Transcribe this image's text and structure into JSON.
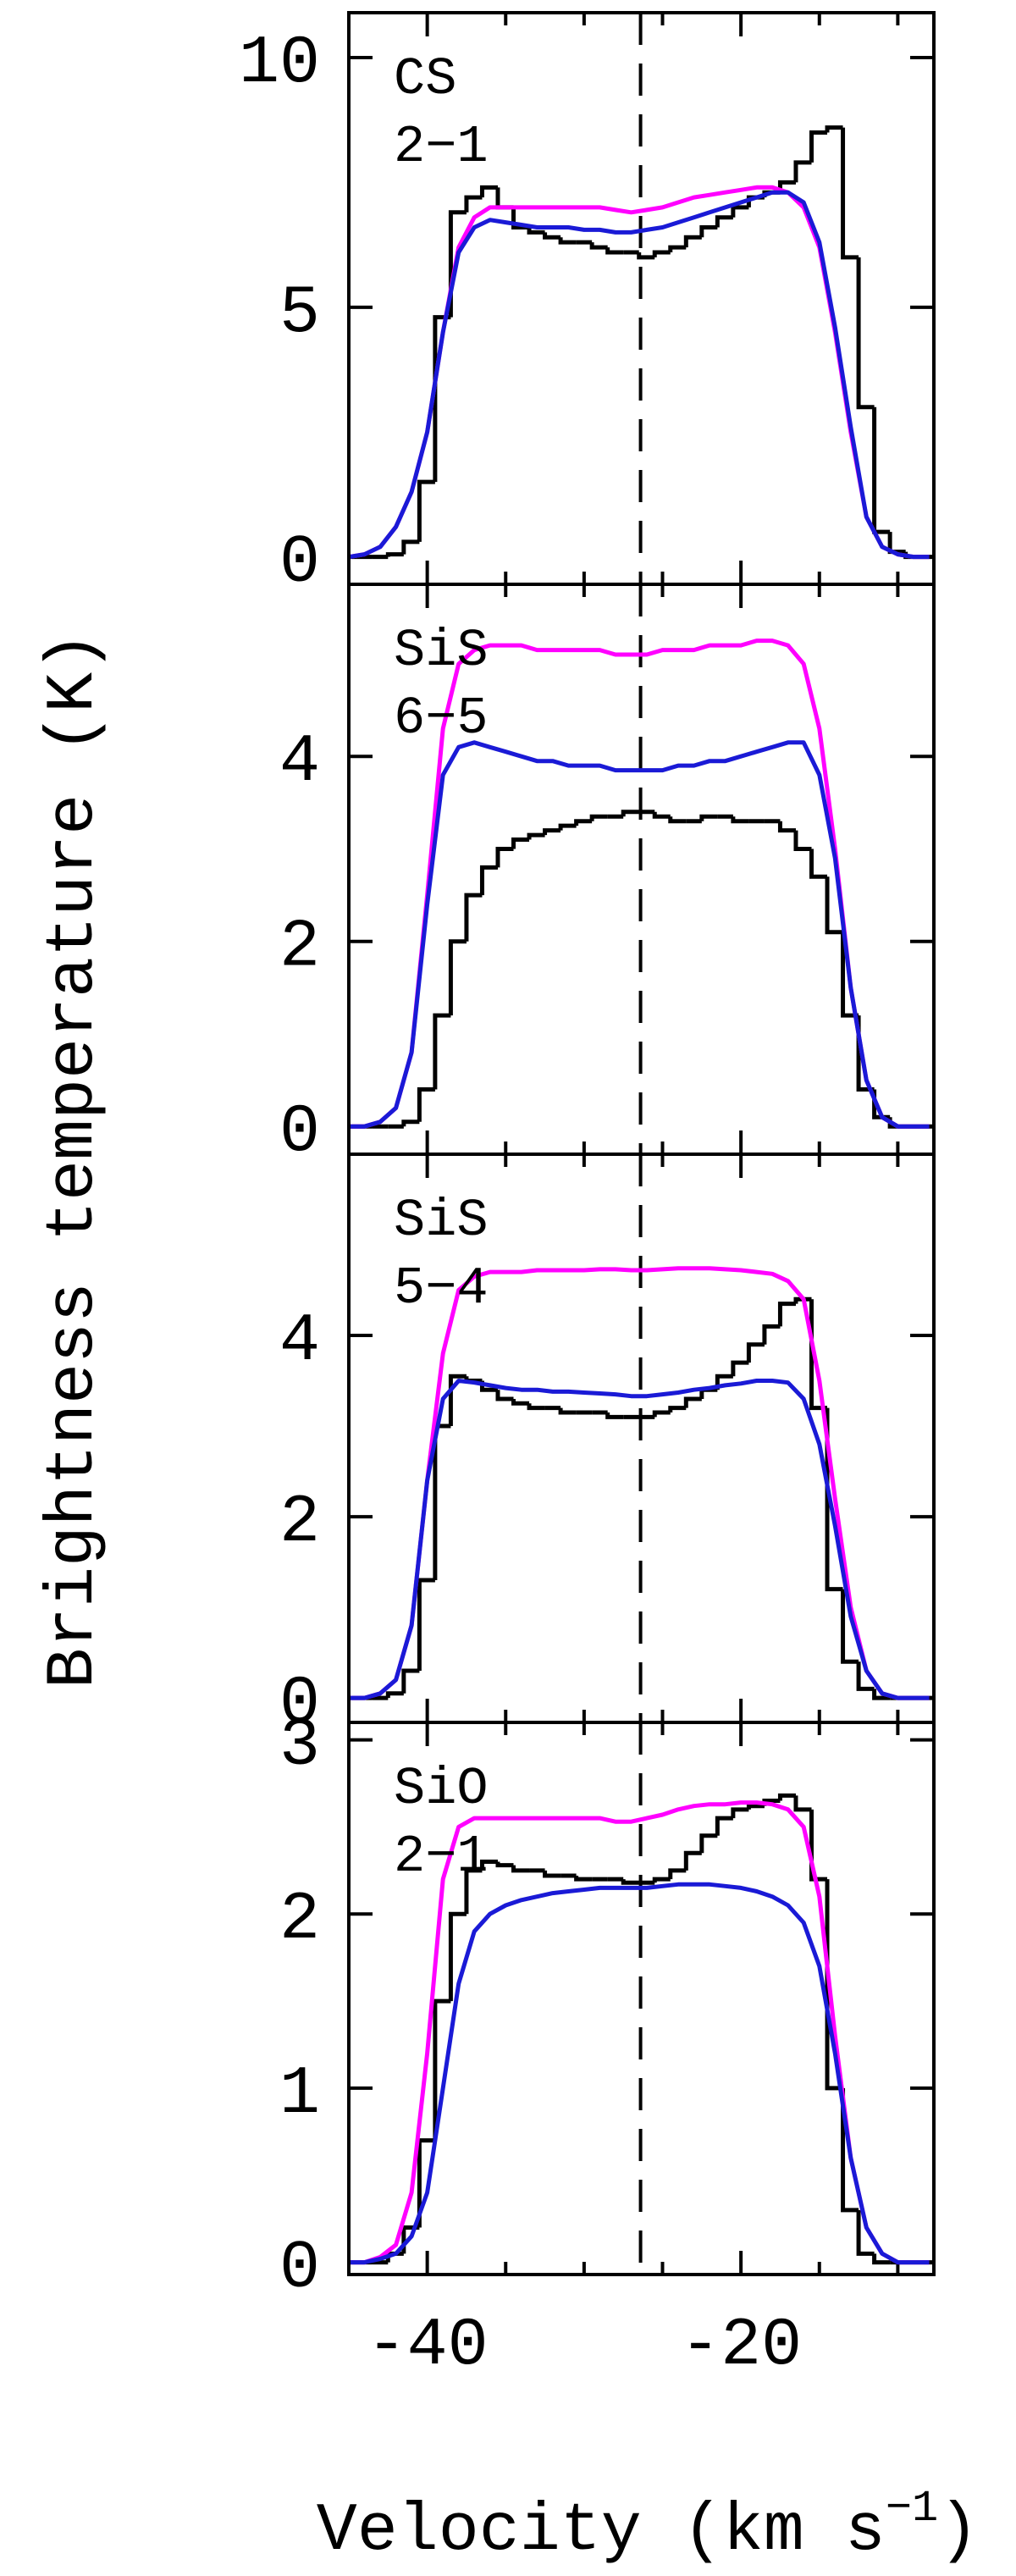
{
  "chart_data": [
    {
      "type": "line",
      "label": [
        "CS",
        "2−1"
      ],
      "x": [
        -45,
        -44,
        -43,
        -42,
        -41,
        -40,
        -39,
        -38,
        -37,
        -36,
        -35,
        -34,
        -33,
        -32,
        -31,
        -30,
        -29,
        -28,
        -27,
        -26,
        -25,
        -24,
        -23,
        -22,
        -21,
        -20,
        -19,
        -18,
        -17,
        -16,
        -15,
        -14,
        -13,
        -12,
        -11,
        -10,
        -9,
        -8
      ],
      "xlim": [
        -45,
        -7.7
      ],
      "xticks": [
        -40,
        -20
      ],
      "xminor": [
        -35,
        -30,
        -25,
        -15,
        -10
      ],
      "ylim": [
        -0.55,
        10.9
      ],
      "yticks": [
        0,
        5,
        10
      ],
      "vline": -26.4,
      "series": [
        {
          "color": "#000000",
          "style": "step",
          "values": [
            0,
            0,
            0,
            0.05,
            0.3,
            1.5,
            4.8,
            6.9,
            7.2,
            7.4,
            7.0,
            6.6,
            6.5,
            6.4,
            6.3,
            6.3,
            6.2,
            6.1,
            6.1,
            6.0,
            6.1,
            6.2,
            6.4,
            6.6,
            6.8,
            7.0,
            7.2,
            7.3,
            7.5,
            7.9,
            8.5,
            8.6,
            6.0,
            3.0,
            0.5,
            0.1,
            0,
            0
          ]
        },
        {
          "color": "#ff00ff",
          "style": "line",
          "values": [
            0,
            0.05,
            0.2,
            0.6,
            1.3,
            2.5,
            4.5,
            6.2,
            6.8,
            7.0,
            7.0,
            7.0,
            7.0,
            7.0,
            7.0,
            7.0,
            7.0,
            6.95,
            6.9,
            6.95,
            7.0,
            7.1,
            7.2,
            7.25,
            7.3,
            7.35,
            7.4,
            7.4,
            7.3,
            7.0,
            6.2,
            4.5,
            2.5,
            0.8,
            0.2,
            0.05,
            0,
            0
          ]
        },
        {
          "color": "#1a1ad6",
          "style": "line",
          "values": [
            0,
            0.05,
            0.2,
            0.6,
            1.3,
            2.5,
            4.5,
            6.1,
            6.6,
            6.75,
            6.7,
            6.65,
            6.6,
            6.6,
            6.6,
            6.55,
            6.55,
            6.5,
            6.5,
            6.55,
            6.6,
            6.7,
            6.8,
            6.9,
            7.0,
            7.1,
            7.2,
            7.3,
            7.3,
            7.1,
            6.3,
            4.6,
            2.6,
            0.8,
            0.2,
            0.05,
            0,
            0
          ]
        }
      ]
    },
    {
      "type": "line",
      "label": [
        "SiS",
        "6−5"
      ],
      "x": [
        -45,
        -44,
        -43,
        -42,
        -41,
        -40,
        -39,
        -38,
        -37,
        -36,
        -35,
        -34,
        -33,
        -32,
        -31,
        -30,
        -29,
        -28,
        -27,
        -26,
        -25,
        -24,
        -23,
        -22,
        -21,
        -20,
        -19,
        -18,
        -17,
        -16,
        -15,
        -14,
        -13,
        -12,
        -11,
        -10,
        -9,
        -8
      ],
      "xlim": [
        -45,
        -7.7
      ],
      "xticks": [
        -40,
        -20
      ],
      "xminor": [
        -35,
        -30,
        -25,
        -15,
        -10
      ],
      "ylim": [
        -0.3,
        5.86
      ],
      "yticks": [
        0,
        2,
        4
      ],
      "vline": -26.4,
      "series": [
        {
          "color": "#000000",
          "style": "step",
          "values": [
            0,
            0,
            0,
            0,
            0.05,
            0.4,
            1.2,
            2.0,
            2.5,
            2.8,
            3.0,
            3.1,
            3.15,
            3.2,
            3.25,
            3.3,
            3.35,
            3.35,
            3.4,
            3.4,
            3.35,
            3.3,
            3.3,
            3.35,
            3.35,
            3.3,
            3.3,
            3.3,
            3.2,
            3.0,
            2.7,
            2.1,
            1.2,
            0.4,
            0.1,
            0,
            0,
            0
          ]
        },
        {
          "color": "#ff00ff",
          "style": "line",
          "values": [
            0,
            0,
            0.05,
            0.2,
            0.8,
            2.5,
            4.3,
            5.0,
            5.15,
            5.2,
            5.2,
            5.2,
            5.15,
            5.15,
            5.15,
            5.15,
            5.15,
            5.1,
            5.1,
            5.1,
            5.15,
            5.15,
            5.15,
            5.2,
            5.2,
            5.2,
            5.25,
            5.25,
            5.2,
            5.0,
            4.3,
            3.0,
            1.5,
            0.5,
            0.1,
            0,
            0,
            0
          ]
        },
        {
          "color": "#1a1ad6",
          "style": "line",
          "values": [
            0,
            0,
            0.05,
            0.2,
            0.8,
            2.4,
            3.8,
            4.1,
            4.15,
            4.1,
            4.05,
            4.0,
            3.95,
            3.95,
            3.9,
            3.9,
            3.9,
            3.85,
            3.85,
            3.85,
            3.85,
            3.9,
            3.9,
            3.95,
            3.95,
            4.0,
            4.05,
            4.1,
            4.15,
            4.15,
            3.8,
            2.9,
            1.5,
            0.5,
            0.1,
            0,
            0,
            0
          ]
        }
      ]
    },
    {
      "type": "line",
      "label": [
        "SiS",
        "5−4"
      ],
      "x": [
        -45,
        -44,
        -43,
        -42,
        -41,
        -40,
        -39,
        -38,
        -37,
        -36,
        -35,
        -34,
        -33,
        -32,
        -31,
        -30,
        -29,
        -28,
        -27,
        -26,
        -25,
        -24,
        -23,
        -22,
        -21,
        -20,
        -19,
        -18,
        -17,
        -16,
        -15,
        -14,
        -13,
        -12,
        -11,
        -10,
        -9,
        -8
      ],
      "xlim": [
        -45,
        -7.7
      ],
      "xticks": [
        -40,
        -20
      ],
      "xminor": [
        -35,
        -30,
        -25,
        -15,
        -10
      ],
      "ylim": [
        -0.27,
        6.0
      ],
      "yticks": [
        0,
        2,
        4
      ],
      "vline": -26.4,
      "series": [
        {
          "color": "#000000",
          "style": "step",
          "values": [
            0,
            0,
            0,
            0.05,
            0.3,
            1.3,
            3.0,
            3.55,
            3.5,
            3.4,
            3.3,
            3.25,
            3.2,
            3.2,
            3.15,
            3.15,
            3.15,
            3.1,
            3.1,
            3.1,
            3.15,
            3.2,
            3.3,
            3.4,
            3.55,
            3.7,
            3.9,
            4.1,
            4.35,
            4.4,
            3.2,
            1.2,
            0.4,
            0.1,
            0,
            0,
            0,
            0
          ]
        },
        {
          "color": "#ff00ff",
          "style": "line",
          "values": [
            0,
            0,
            0.05,
            0.2,
            0.8,
            2.4,
            3.8,
            4.5,
            4.65,
            4.7,
            4.7,
            4.7,
            4.72,
            4.72,
            4.72,
            4.72,
            4.73,
            4.73,
            4.72,
            4.72,
            4.73,
            4.74,
            4.74,
            4.74,
            4.73,
            4.72,
            4.7,
            4.68,
            4.6,
            4.4,
            3.5,
            2.2,
            1.0,
            0.3,
            0.05,
            0,
            0,
            0
          ]
        },
        {
          "color": "#1a1ad6",
          "style": "line",
          "values": [
            0,
            0,
            0.05,
            0.2,
            0.8,
            2.4,
            3.3,
            3.5,
            3.48,
            3.45,
            3.42,
            3.4,
            3.4,
            3.38,
            3.38,
            3.37,
            3.36,
            3.35,
            3.33,
            3.33,
            3.35,
            3.37,
            3.4,
            3.42,
            3.45,
            3.47,
            3.5,
            3.5,
            3.48,
            3.3,
            2.8,
            1.9,
            0.9,
            0.3,
            0.05,
            0,
            0,
            0
          ]
        }
      ]
    },
    {
      "type": "line",
      "label": [
        "SiO",
        "2−1"
      ],
      "x": [
        -45,
        -44,
        -43,
        -42,
        -41,
        -40,
        -39,
        -38,
        -37,
        -36,
        -35,
        -34,
        -33,
        -32,
        -31,
        -30,
        -29,
        -28,
        -27,
        -26,
        -25,
        -24,
        -23,
        -22,
        -21,
        -20,
        -19,
        -18,
        -17,
        -16,
        -15,
        -14,
        -13,
        -12,
        -11,
        -10,
        -9,
        -8
      ],
      "xlim": [
        -45,
        -7.7
      ],
      "xticks": [
        -40,
        -20
      ],
      "xminor": [
        -35,
        -30,
        -25,
        -15,
        -10
      ],
      "ylim": [
        -0.07,
        3.1
      ],
      "yticks": [
        0,
        1,
        2,
        3
      ],
      "vline": -26.4,
      "xlabel": [
        "Velocity (km s",
        "−1",
        ")"
      ],
      "ylabel": "Brightness temperature (K)",
      "series": [
        {
          "color": "#000000",
          "style": "step",
          "values": [
            0,
            0,
            0,
            0.05,
            0.2,
            0.7,
            1.5,
            2.0,
            2.25,
            2.3,
            2.28,
            2.25,
            2.25,
            2.22,
            2.22,
            2.2,
            2.2,
            2.2,
            2.18,
            2.18,
            2.2,
            2.25,
            2.35,
            2.45,
            2.55,
            2.6,
            2.62,
            2.65,
            2.68,
            2.6,
            2.2,
            1.0,
            0.3,
            0.05,
            0,
            0,
            0,
            0
          ]
        },
        {
          "color": "#ff00ff",
          "style": "line",
          "values": [
            0,
            0,
            0.03,
            0.1,
            0.4,
            1.2,
            2.2,
            2.5,
            2.55,
            2.55,
            2.55,
            2.55,
            2.55,
            2.55,
            2.55,
            2.55,
            2.55,
            2.53,
            2.53,
            2.55,
            2.57,
            2.6,
            2.62,
            2.63,
            2.63,
            2.64,
            2.64,
            2.63,
            2.6,
            2.5,
            2.1,
            1.3,
            0.6,
            0.2,
            0.05,
            0,
            0,
            0
          ]
        },
        {
          "color": "#1a1ad6",
          "style": "line",
          "values": [
            0,
            0,
            0.02,
            0.05,
            0.15,
            0.4,
            1.0,
            1.6,
            1.9,
            2.0,
            2.05,
            2.08,
            2.1,
            2.12,
            2.13,
            2.14,
            2.15,
            2.15,
            2.15,
            2.15,
            2.16,
            2.17,
            2.17,
            2.17,
            2.16,
            2.15,
            2.13,
            2.1,
            2.05,
            1.95,
            1.7,
            1.2,
            0.6,
            0.2,
            0.05,
            0,
            0,
            0
          ]
        }
      ]
    }
  ]
}
